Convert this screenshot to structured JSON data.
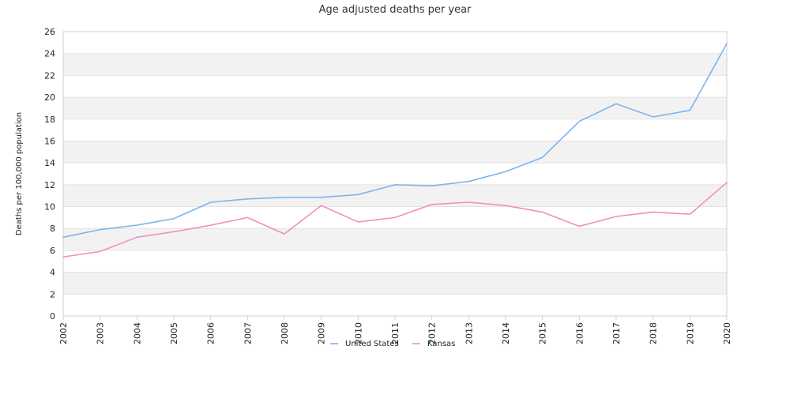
{
  "chart_data": {
    "type": "line",
    "title": "Age adjusted deaths per year",
    "xlabel": "",
    "ylabel": "Deaths per 100,000 population",
    "ylim": [
      0,
      26
    ],
    "yticks": [
      0,
      2,
      4,
      6,
      8,
      10,
      12,
      14,
      16,
      18,
      20,
      22,
      24,
      26
    ],
    "categories": [
      "2002",
      "2003",
      "2004",
      "2005",
      "2006",
      "2007",
      "2008",
      "2009",
      "2010",
      "2011",
      "2012",
      "2013",
      "2014",
      "2015",
      "2016",
      "2017",
      "2018",
      "2019",
      "2020"
    ],
    "grid": "horizontal bands",
    "legend_position": "bottom",
    "series": [
      {
        "name": "United States",
        "color": "#7cb5ec",
        "values": [
          7.2,
          7.9,
          8.3,
          8.9,
          10.4,
          10.7,
          10.85,
          10.85,
          11.1,
          12.0,
          11.9,
          12.3,
          13.2,
          14.5,
          17.8,
          19.4,
          18.2,
          18.8,
          24.9
        ]
      },
      {
        "name": "Kansas",
        "color": "#f08fbf",
        "values": [
          5.4,
          5.9,
          7.2,
          7.7,
          8.3,
          9.0,
          7.5,
          10.1,
          8.6,
          9.0,
          10.2,
          10.4,
          10.1,
          9.5,
          8.2,
          9.1,
          9.5,
          9.3,
          12.2
        ]
      }
    ]
  }
}
